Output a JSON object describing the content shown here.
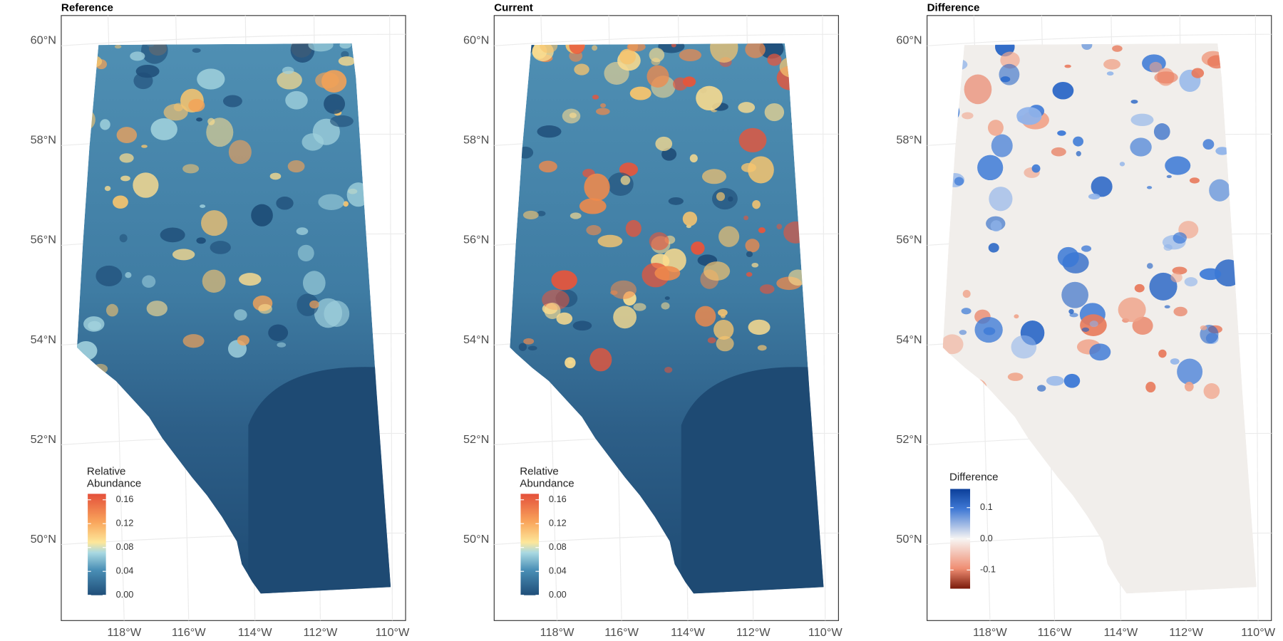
{
  "panels": [
    {
      "title": "Reference",
      "lat_labels": [
        "60°N",
        "58°N",
        "56°N",
        "54°N",
        "52°N",
        "50°N"
      ],
      "lon_labels": [
        "118°W",
        "116°W",
        "114°W",
        "112°W",
        "110°W"
      ],
      "legend": {
        "title": [
          "Relative",
          "Abundance"
        ],
        "lim": [
          0,
          0.17
        ],
        "ticks": [
          {
            "value": 0,
            "label": "0.00"
          },
          0.04,
          0.08,
          0.12,
          0.16
        ]
      }
    },
    {
      "title": "Current",
      "lat_labels": [
        "60°N",
        "58°N",
        "56°N",
        "54°N",
        "52°N",
        "50°N"
      ],
      "lon_labels": [
        "118°W",
        "116°W",
        "114°W",
        "112°W",
        "110°W"
      ],
      "legend": {
        "title": [
          "Relative",
          "Abundance"
        ],
        "lim": [
          0,
          0.17
        ],
        "ticks": [
          {
            "value": 0,
            "label": "0.00"
          },
          0.04,
          0.08,
          0.12,
          0.16
        ]
      }
    },
    {
      "title": "Difference",
      "lat_labels": [
        "60°N",
        "58°N",
        "56°N",
        "54°N",
        "52°N",
        "50°N"
      ],
      "lon_labels": [
        "118°W",
        "116°W",
        "114°W",
        "112°W",
        "110°W"
      ],
      "legend": {
        "title": [
          "Difference"
        ],
        "lim": [
          -0.16,
          0.16
        ],
        "ticks": [
          -0.1,
          {
            "value": 0,
            "label": "0.0"
          },
          0.1
        ]
      }
    }
  ]
}
